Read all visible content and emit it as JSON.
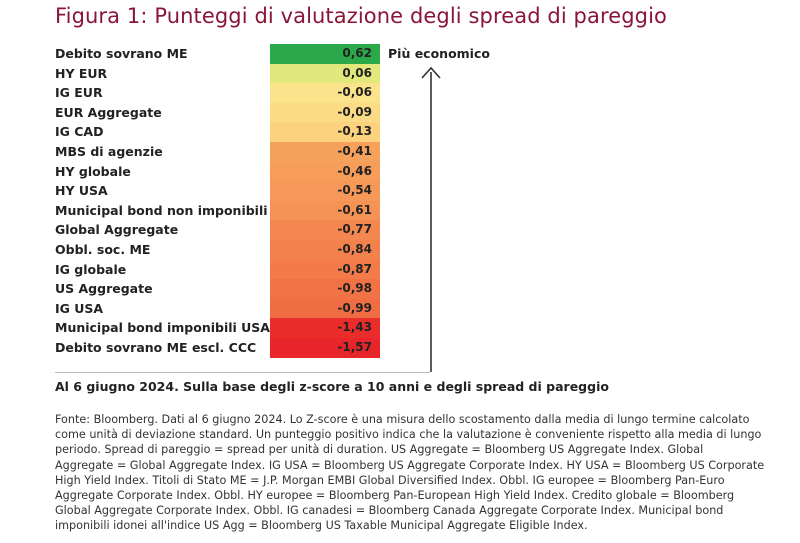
{
  "title": "Figura 1: Punteggi di valutazione degli spread di pareggio",
  "top_label": "Più economico",
  "note": "Al 6 giugno 2024. Sulla base degli z-score a 10 anni e degli spread di pareggio",
  "source": "Fonte: Bloomberg. Dati al 6 giugno 2024. Lo Z-score è una misura dello scostamento dalla media di lungo termine calcolato come unità di deviazione standard. Un punteggio positivo indica che la valutazione è conveniente rispetto alla media di lungo periodo. Spread di pareggio = spread per unità di duration. US Aggregate = Bloomberg US Aggregate Index. Global Aggregate = Global Aggregate Index. IG USA = Bloomberg US Aggregate Corporate Index. HY USA = Bloomberg US Corporate High Yield Index. Titoli di Stato ME = J.P. Morgan EMBI Global Diversified Index. Obbl. IG europee = Bloomberg Pan-Euro Aggregate Corporate Index. Obbl. HY europee = Bloomberg Pan-European High Yield Index. Credito globale = Bloomberg Global Aggregate Corporate Index. Obbl. IG canadesi = Bloomberg Canada Aggregate Corporate Index. Municipal bond imponibili idonei all'indice US Agg = Bloomberg US Taxable Municipal Aggregate Eligible Index.",
  "chart_data": {
    "type": "table",
    "categories": [
      "Debito sovrano ME",
      "HY EUR",
      "IG EUR",
      "EUR Aggregate",
      "IG CAD",
      "MBS di agenzie",
      "HY globale",
      "HY USA",
      "Municipal bond non imponibili USA",
      "Global Aggregate",
      "Obbl. soc. ME",
      "IG globale",
      "US Aggregate",
      "IG USA",
      "Municipal bond imponibili USA",
      "Debito sovrano ME escl. CCC"
    ],
    "values": [
      "0,62",
      "0,06",
      "-0,06",
      "-0,09",
      "-0,13",
      "-0,41",
      "-0,46",
      "-0,54",
      "-0,61",
      "-0,77",
      "-0,84",
      "-0,87",
      "-0,98",
      "-0,99",
      "-1,43",
      "-1,57"
    ],
    "colors": [
      "#2aa84a",
      "#e3e87c",
      "#fae38a",
      "#fbdb84",
      "#fcd27f",
      "#f7a25c",
      "#f69d5a",
      "#f69857",
      "#f59355",
      "#f4874f",
      "#f3814c",
      "#f27b49",
      "#f17244",
      "#f06c42",
      "#ea2d2b",
      "#e8252a"
    ]
  }
}
